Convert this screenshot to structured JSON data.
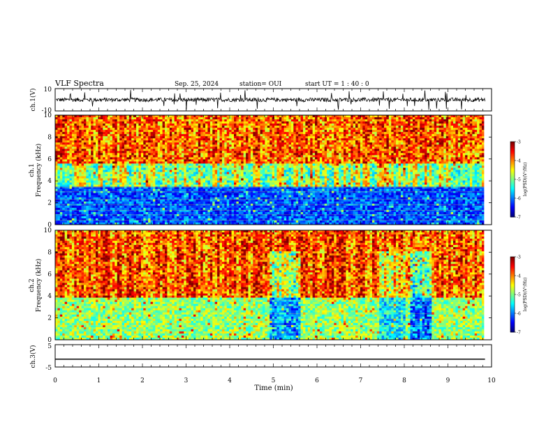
{
  "header": {
    "title": "VLF Spectra",
    "date": "Sep. 25, 2024",
    "station": "station= OUI",
    "start": "start  UT =   1 : 40 : 0"
  },
  "chart_data": [
    {
      "type": "line",
      "name": "ch1-waveform",
      "ylabel": "ch.1(V)",
      "ylim": [
        -10,
        10
      ],
      "yticks": [
        "10",
        "-10"
      ],
      "xlim": [
        0,
        10
      ],
      "trace_mean": 0,
      "noise_range": [
        -3,
        3
      ]
    },
    {
      "type": "heatmap",
      "name": "ch1-spectrogram",
      "ylabel": "ch.1\nFrequency (kHz)",
      "ylabel_lines": [
        "ch.1",
        "Frequency (kHz)"
      ],
      "ylim": [
        0,
        10
      ],
      "yticks": [
        0,
        2,
        4,
        6,
        8,
        10
      ],
      "xlim": [
        0,
        9.83
      ],
      "colorbar": {
        "label": "log(PSD)(V²/Hz)",
        "range": [
          -7,
          -3
        ],
        "ticks": [
          "-3",
          "-4",
          "-5",
          "-6",
          "-7"
        ]
      }
    },
    {
      "type": "heatmap",
      "name": "ch2-spectrogram",
      "ylabel": "ch.2\nFrequency (kHz)",
      "ylabel_lines": [
        "ch.2",
        "Frequency (kHz)"
      ],
      "ylim": [
        0,
        10
      ],
      "yticks": [
        0,
        2,
        4,
        6,
        8,
        10
      ],
      "xlim": [
        0,
        9.83
      ],
      "colorbar": {
        "label": "log(PSD)(V²/Hz)",
        "range": [
          -7,
          -3
        ],
        "ticks": [
          "-3",
          "-4",
          "-5",
          "-6",
          "-7"
        ]
      }
    },
    {
      "type": "line",
      "name": "ch3-waveform",
      "ylabel": "ch.3(V)",
      "ylim": [
        -5,
        5
      ],
      "yticks": [
        "5",
        "-5"
      ],
      "xlim": [
        0,
        10
      ],
      "values": [
        -1.5,
        -1.5
      ]
    }
  ],
  "xaxis": {
    "label": "Time (min)",
    "ticks": [
      "0",
      "1",
      "2",
      "3",
      "4",
      "5",
      "6",
      "7",
      "8",
      "9",
      "10"
    ],
    "range": [
      0,
      10
    ]
  }
}
